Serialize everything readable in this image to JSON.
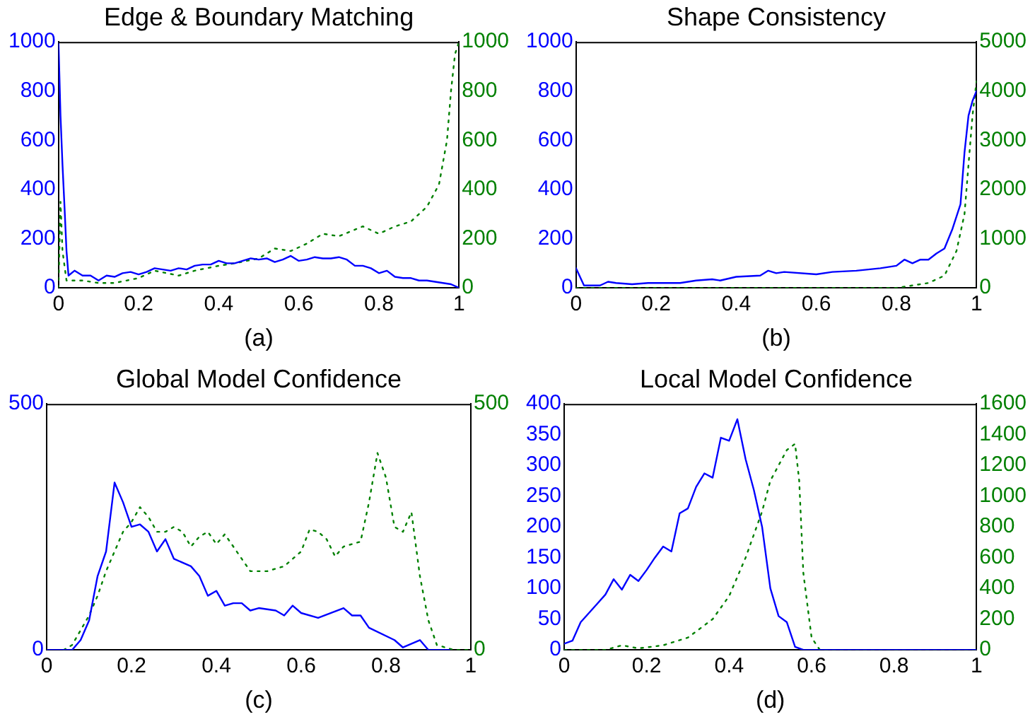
{
  "chart_data": [
    {
      "type": "line",
      "title": "Edge & Boundary Matching",
      "xlabel": "(a)",
      "xlim": [
        0,
        1
      ],
      "xticks": [
        0,
        0.2,
        0.4,
        0.6,
        0.8,
        1
      ],
      "ylim": [
        0,
        1000
      ],
      "yticks": [
        0,
        200,
        400,
        600,
        800,
        1000
      ],
      "y2lim": [
        0,
        1000
      ],
      "y2ticks": [
        0,
        200,
        400,
        600,
        800,
        1000
      ],
      "grid": false,
      "legend": false,
      "marker": "none",
      "series": [
        {
          "color": "#0000ff",
          "line_style": "solid",
          "x": [
            0,
            0.005,
            0.01,
            0.015,
            0.02,
            0.025,
            0.04,
            0.06,
            0.08,
            0.1,
            0.12,
            0.14,
            0.16,
            0.18,
            0.2,
            0.22,
            0.24,
            0.26,
            0.28,
            0.3,
            0.32,
            0.34,
            0.36,
            0.38,
            0.4,
            0.42,
            0.44,
            0.46,
            0.48,
            0.5,
            0.52,
            0.54,
            0.56,
            0.58,
            0.6,
            0.62,
            0.64,
            0.66,
            0.68,
            0.7,
            0.72,
            0.74,
            0.76,
            0.78,
            0.8,
            0.82,
            0.84,
            0.86,
            0.88,
            0.9,
            0.92,
            0.94,
            0.96,
            0.98,
            1
          ],
          "values": [
            1000,
            700,
            500,
            330,
            150,
            50,
            70,
            50,
            50,
            30,
            50,
            45,
            60,
            65,
            55,
            65,
            80,
            75,
            70,
            80,
            75,
            90,
            95,
            95,
            110,
            100,
            100,
            110,
            120,
            115,
            120,
            105,
            115,
            130,
            110,
            115,
            125,
            120,
            120,
            125,
            115,
            90,
            90,
            80,
            60,
            70,
            45,
            40,
            40,
            30,
            30,
            25,
            20,
            15,
            0
          ]
        },
        {
          "axis": "y2",
          "color": "#008000",
          "line_style": "dotted",
          "x": [
            0,
            0.005,
            0.01,
            0.02,
            0.04,
            0.06,
            0.1,
            0.14,
            0.2,
            0.24,
            0.3,
            0.34,
            0.4,
            0.44,
            0.5,
            0.54,
            0.58,
            0.62,
            0.66,
            0.7,
            0.76,
            0.8,
            0.84,
            0.88,
            0.92,
            0.95,
            0.97,
            0.98,
            0.99,
            1
          ],
          "values": [
            0,
            350,
            150,
            30,
            30,
            30,
            20,
            20,
            40,
            70,
            50,
            70,
            90,
            100,
            120,
            160,
            150,
            180,
            220,
            210,
            250,
            220,
            250,
            270,
            330,
            420,
            600,
            800,
            950,
            1000
          ]
        }
      ]
    },
    {
      "type": "line",
      "title": "Shape Consistency",
      "xlabel": "(b)",
      "xlim": [
        0,
        1
      ],
      "xticks": [
        0,
        0.2,
        0.4,
        0.6,
        0.8,
        1
      ],
      "ylim": [
        0,
        1000
      ],
      "yticks": [
        0,
        200,
        400,
        600,
        800,
        1000
      ],
      "y2lim": [
        0,
        5000
      ],
      "y2ticks": [
        0,
        1000,
        2000,
        3000,
        4000,
        5000
      ],
      "grid": false,
      "legend": false,
      "marker": "none",
      "series": [
        {
          "color": "#0000ff",
          "line_style": "solid",
          "x": [
            0,
            0.02,
            0.06,
            0.08,
            0.1,
            0.14,
            0.18,
            0.2,
            0.26,
            0.3,
            0.34,
            0.36,
            0.4,
            0.46,
            0.48,
            0.5,
            0.52,
            0.6,
            0.64,
            0.7,
            0.76,
            0.8,
            0.82,
            0.84,
            0.86,
            0.88,
            0.9,
            0.92,
            0.94,
            0.96,
            0.97,
            0.98,
            0.99,
            1
          ],
          "values": [
            80,
            10,
            10,
            25,
            20,
            15,
            20,
            20,
            20,
            30,
            35,
            30,
            45,
            50,
            70,
            60,
            65,
            55,
            65,
            70,
            80,
            90,
            115,
            100,
            115,
            115,
            140,
            160,
            240,
            340,
            550,
            700,
            760,
            800
          ]
        },
        {
          "axis": "y2",
          "color": "#008000",
          "line_style": "dotted",
          "x": [
            0,
            0.2,
            0.4,
            0.6,
            0.8,
            0.84,
            0.88,
            0.92,
            0.95,
            0.97,
            0.98,
            0.99,
            1
          ],
          "values": [
            0,
            0,
            0,
            0,
            0,
            50,
            100,
            250,
            750,
            1500,
            2500,
            3500,
            4200
          ]
        }
      ]
    },
    {
      "type": "line",
      "title": "Global Model Confidence",
      "xlabel": "(c)",
      "xlim": [
        0,
        1
      ],
      "xticks": [
        0,
        0.2,
        0.4,
        0.6,
        0.8,
        1
      ],
      "ylim": [
        0,
        500
      ],
      "yticks": [
        0,
        500
      ],
      "y2lim": [
        0,
        500
      ],
      "y2ticks": [
        0,
        500
      ],
      "grid": false,
      "legend": false,
      "marker": "none",
      "series": [
        {
          "color": "#0000ff",
          "line_style": "solid",
          "x": [
            0,
            0.06,
            0.08,
            0.1,
            0.12,
            0.14,
            0.16,
            0.18,
            0.2,
            0.22,
            0.24,
            0.26,
            0.28,
            0.3,
            0.34,
            0.36,
            0.38,
            0.4,
            0.42,
            0.44,
            0.46,
            0.48,
            0.5,
            0.54,
            0.56,
            0.58,
            0.6,
            0.64,
            0.7,
            0.72,
            0.74,
            0.76,
            0.82,
            0.84,
            0.88,
            0.9,
            0.95
          ],
          "values": [
            0,
            0,
            20,
            60,
            150,
            200,
            340,
            300,
            250,
            255,
            240,
            200,
            225,
            185,
            170,
            150,
            110,
            120,
            90,
            95,
            95,
            80,
            85,
            80,
            70,
            90,
            75,
            65,
            85,
            70,
            70,
            45,
            20,
            5,
            20,
            0,
            0
          ]
        },
        {
          "axis": "y2",
          "color": "#008000",
          "line_style": "dotted",
          "x": [
            0.04,
            0.06,
            0.08,
            0.1,
            0.12,
            0.14,
            0.16,
            0.18,
            0.2,
            0.22,
            0.24,
            0.26,
            0.28,
            0.3,
            0.32,
            0.34,
            0.36,
            0.38,
            0.4,
            0.42,
            0.44,
            0.48,
            0.52,
            0.56,
            0.6,
            0.62,
            0.64,
            0.66,
            0.68,
            0.7,
            0.74,
            0.76,
            0.78,
            0.8,
            0.82,
            0.84,
            0.86,
            0.88,
            0.9,
            0.92,
            0.96,
            1
          ],
          "values": [
            0,
            10,
            40,
            70,
            110,
            160,
            200,
            240,
            260,
            290,
            270,
            240,
            240,
            250,
            240,
            210,
            230,
            240,
            215,
            235,
            210,
            160,
            160,
            170,
            200,
            245,
            240,
            225,
            190,
            210,
            220,
            300,
            400,
            350,
            250,
            240,
            280,
            150,
            60,
            10,
            0,
            0
          ]
        }
      ]
    },
    {
      "type": "line",
      "title": "Local Model Confidence",
      "xlabel": "(d)",
      "xlim": [
        0,
        1
      ],
      "xticks": [
        0,
        0.2,
        0.4,
        0.6,
        0.8,
        1
      ],
      "ylim": [
        0,
        400
      ],
      "yticks": [
        0,
        50,
        100,
        150,
        200,
        250,
        300,
        350,
        400
      ],
      "y2lim": [
        0,
        1600
      ],
      "y2ticks": [
        0,
        200,
        400,
        600,
        800,
        1000,
        1200,
        1400,
        1600
      ],
      "grid": false,
      "legend": false,
      "marker": "none",
      "series": [
        {
          "color": "#0000ff",
          "line_style": "solid",
          "x": [
            0,
            0.02,
            0.04,
            0.06,
            0.08,
            0.1,
            0.12,
            0.14,
            0.16,
            0.18,
            0.2,
            0.22,
            0.24,
            0.26,
            0.28,
            0.3,
            0.32,
            0.34,
            0.36,
            0.38,
            0.4,
            0.42,
            0.44,
            0.46,
            0.48,
            0.5,
            0.52,
            0.54,
            0.56,
            0.58,
            0.6,
            1
          ],
          "values": [
            10,
            15,
            45,
            60,
            75,
            90,
            115,
            98,
            122,
            112,
            130,
            150,
            168,
            160,
            222,
            230,
            265,
            287,
            280,
            345,
            340,
            375,
            310,
            260,
            200,
            100,
            55,
            45,
            5,
            0,
            0,
            0
          ]
        },
        {
          "axis": "y2",
          "color": "#008000",
          "line_style": "dotted",
          "x": [
            0,
            0.1,
            0.14,
            0.18,
            0.24,
            0.3,
            0.36,
            0.4,
            0.44,
            0.48,
            0.5,
            0.52,
            0.54,
            0.56,
            0.57,
            0.58,
            0.6,
            0.62,
            1
          ],
          "values": [
            0,
            0,
            30,
            10,
            30,
            80,
            200,
            350,
            600,
            900,
            1100,
            1200,
            1300,
            1340,
            1100,
            500,
            80,
            0,
            0
          ]
        }
      ]
    }
  ]
}
